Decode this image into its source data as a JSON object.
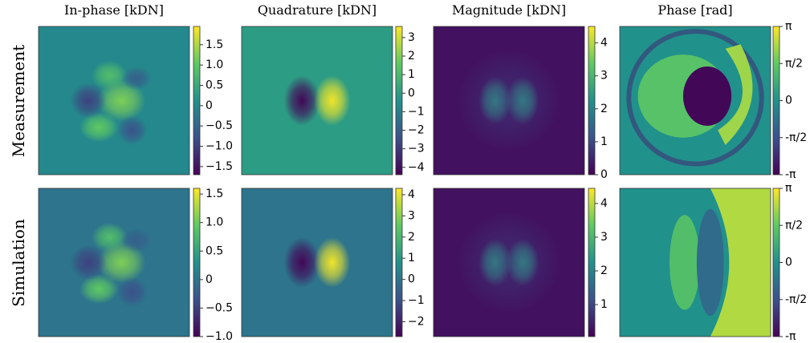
{
  "column_titles": [
    "In-phase [kDN]",
    "Quadrature [kDN]",
    "Magnitude [kDN]",
    "Phase [rad]"
  ],
  "row_labels": [
    "Measurement",
    "Simulation"
  ],
  "chart_data": [
    {
      "type": "heatmap",
      "clim": [
        -1.7,
        1.95
      ],
      "cticks": [
        {
          "value": -1.5,
          "label": "−1.5"
        },
        {
          "value": -1,
          "label": "−1.0"
        },
        {
          "value": -0.5,
          "label": "−0.5"
        },
        0,
        0.5,
        {
          "value": 1,
          "label": "1.0"
        },
        1.5
      ]
    },
    {
      "type": "heatmap",
      "clim": [
        -4.4,
        3.6
      ],
      "cticks": [
        {
          "value": -4,
          "label": "−4"
        },
        {
          "value": -3,
          "label": "−3"
        },
        {
          "value": -2,
          "label": "−2"
        },
        {
          "value": -1,
          "label": "−1"
        },
        0,
        1,
        2,
        3
      ]
    },
    {
      "type": "heatmap",
      "clim": [
        0,
        4.5
      ],
      "cticks": [
        0,
        1,
        2,
        3,
        4
      ]
    },
    {
      "type": "heatmap",
      "clim": [
        -3.1416,
        3.1416
      ],
      "cticks": [
        {
          "value": -3.1416,
          "label": "-π"
        },
        {
          "value": -1.5708,
          "label": "-π/2"
        },
        0,
        {
          "value": 1.5708,
          "label": "π/2"
        },
        {
          "value": 3.1416,
          "label": "π"
        }
      ]
    },
    {
      "type": "heatmap",
      "clim": [
        -1.0,
        1.6
      ],
      "cticks": [
        {
          "value": -1,
          "label": "−1.0"
        },
        {
          "value": -0.5,
          "label": "−0.5"
        },
        0,
        0.5,
        {
          "value": 1,
          "label": "1.0"
        },
        1.5
      ]
    },
    {
      "type": "heatmap",
      "clim": [
        -2.7,
        4.3
      ],
      "cticks": [
        {
          "value": -2,
          "label": "−2"
        },
        {
          "value": -1,
          "label": "−1"
        },
        0,
        1,
        2,
        3,
        4
      ]
    },
    {
      "type": "heatmap",
      "clim": [
        0.05,
        4.45
      ],
      "cticks": [
        1,
        2,
        3,
        4
      ]
    },
    {
      "type": "heatmap",
      "clim": [
        -3.1416,
        3.1416
      ],
      "cticks": [
        {
          "value": -3.1416,
          "label": "-π"
        },
        {
          "value": -1.5708,
          "label": "-π/2"
        },
        0,
        {
          "value": 1.5708,
          "label": "π/2"
        },
        {
          "value": 3.1416,
          "label": "π"
        }
      ]
    }
  ]
}
